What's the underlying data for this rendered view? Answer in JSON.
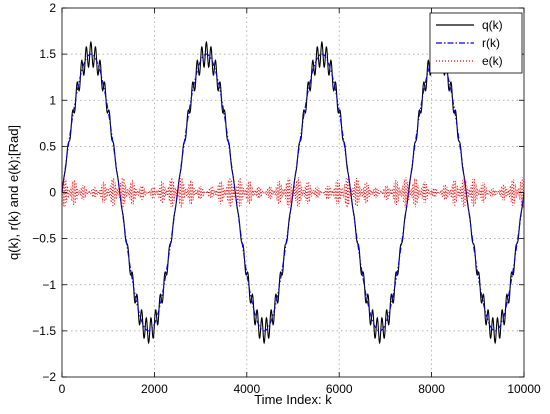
{
  "chart_data": {
    "type": "line",
    "title": "",
    "xlabel": "Time Index: k",
    "ylabel": "q(k), r(k) and e(k);[Rad]",
    "xlim": [
      0,
      10000
    ],
    "ylim": [
      -2,
      2
    ],
    "xticks": [
      0,
      2000,
      4000,
      6000,
      8000,
      10000
    ],
    "xtick_labels": [
      "0",
      "2000",
      "4000",
      "6000",
      "8000",
      "10000"
    ],
    "yticks": [
      -2,
      -1.5,
      -1,
      -0.5,
      0,
      0.5,
      1,
      1.5,
      2
    ],
    "ytick_labels": [
      "−2",
      "−1.5",
      "−1",
      "−0.5",
      "0",
      "0.5",
      "1",
      "1.5",
      "2"
    ],
    "grid": true,
    "legend_position": "top-right",
    "series": [
      {
        "name": "q(k)",
        "color": "#000000",
        "style": "solid",
        "description_values": {
          "amplitude": 1.5,
          "period": 2500,
          "oscillation_amplitude": 0.13,
          "oscillation_period": 100
        }
      },
      {
        "name": "r(k)",
        "color": "#0000ff",
        "style": "dashdot",
        "description_values": {
          "amplitude": 1.5,
          "period": 2500
        }
      },
      {
        "name": "e(k)",
        "color": "#ff0000",
        "style": "dotted",
        "description_values": {
          "band_half_width_max": 0.17,
          "band_half_width_min": 0.03,
          "band_period": 1250
        }
      }
    ]
  }
}
